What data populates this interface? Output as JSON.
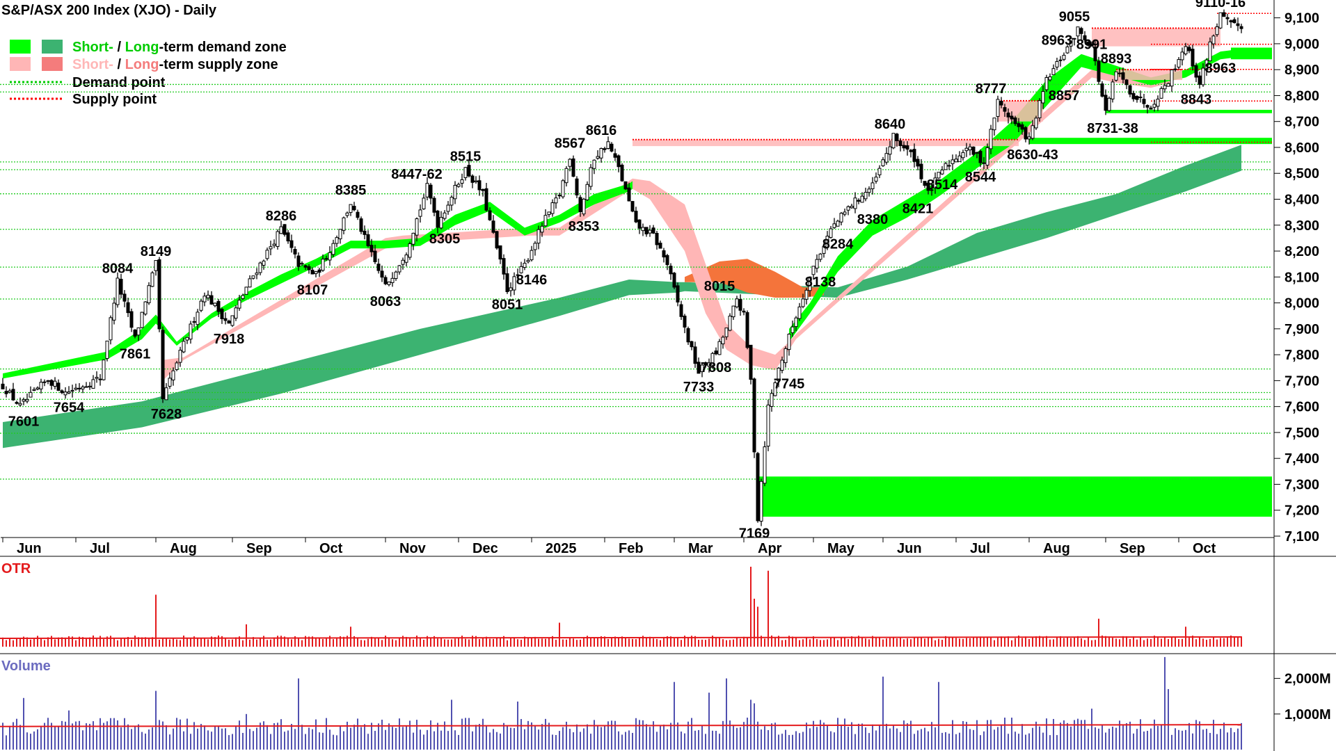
{
  "chart_data": {
    "type": "candlestick",
    "title": "S&P/ASX 200 Index (XJO) - Daily",
    "ylim": [
      7100,
      9150
    ],
    "y_ticks": [
      "9,100",
      "9,000",
      "8,900",
      "8,800",
      "8,700",
      "8,600",
      "8,500",
      "8,400",
      "8,300",
      "8,200",
      "8,100",
      "8,000",
      "7,900",
      "7,800",
      "7,700",
      "7,600",
      "7,500",
      "7,400",
      "7,300",
      "7,200",
      "7,100"
    ],
    "y_tick_values": [
      9100,
      9000,
      8900,
      8800,
      8700,
      8600,
      8500,
      8400,
      8300,
      8200,
      8100,
      8000,
      7900,
      7800,
      7700,
      7600,
      7500,
      7400,
      7300,
      7200,
      7100
    ],
    "x_month_labels": [
      "Jun",
      "Jul",
      "Aug",
      "Sep",
      "Oct",
      "Nov",
      "Dec",
      "2025",
      "Feb",
      "Mar",
      "Apr",
      "May",
      "Jun",
      "Jul",
      "Aug",
      "Sep",
      "Oct"
    ],
    "x_month_start_index": [
      0,
      21,
      44,
      66,
      87,
      110,
      131,
      152,
      173,
      193,
      213,
      233,
      253,
      274,
      295,
      317,
      338
    ],
    "legend": [
      {
        "label_short": "Short-",
        "label_sep": " / ",
        "label_long": "Long",
        "label_rest": "-term demand zone",
        "short_color": "#00ff00",
        "long_color": "#3cb371",
        "short_text_color": "#00cc00",
        "long_text_color": "#00cc00"
      },
      {
        "label_short": "Short-",
        "label_sep": " / ",
        "label_long": "Long",
        "label_rest": "-term supply zone",
        "short_color": "#ffb6b6",
        "long_color": "#f47c7c",
        "short_text_color": "#ffb6b6",
        "long_text_color": "#f47c7c"
      },
      {
        "label": "Demand point",
        "color": "#00cc00",
        "style": "dotted"
      },
      {
        "label": "Supply point",
        "color": "#ff0000",
        "style": "dotted"
      }
    ],
    "price_anchors": [
      [
        0,
        7680
      ],
      [
        5,
        7601
      ],
      [
        13,
        7705
      ],
      [
        18,
        7654
      ],
      [
        28,
        7710
      ],
      [
        33,
        8084
      ],
      [
        38,
        7861
      ],
      [
        42,
        8060
      ],
      [
        44,
        8149
      ],
      [
        46,
        7628
      ],
      [
        52,
        7840
      ],
      [
        58,
        8040
      ],
      [
        65,
        7918
      ],
      [
        70,
        8060
      ],
      [
        80,
        8286
      ],
      [
        85,
        8150
      ],
      [
        90,
        8107
      ],
      [
        95,
        8230
      ],
      [
        100,
        8385
      ],
      [
        105,
        8215
      ],
      [
        110,
        8063
      ],
      [
        116,
        8200
      ],
      [
        122,
        8447
      ],
      [
        125,
        8305
      ],
      [
        130,
        8440
      ],
      [
        133,
        8515
      ],
      [
        138,
        8420
      ],
      [
        145,
        8051
      ],
      [
        150,
        8146
      ],
      [
        155,
        8300
      ],
      [
        160,
        8420
      ],
      [
        163,
        8567
      ],
      [
        166,
        8353
      ],
      [
        170,
        8560
      ],
      [
        174,
        8616
      ],
      [
        177,
        8520
      ],
      [
        182,
        8300
      ],
      [
        187,
        8260
      ],
      [
        191,
        8150
      ],
      [
        196,
        7900
      ],
      [
        200,
        7733
      ],
      [
        205,
        7808
      ],
      [
        208,
        7900
      ],
      [
        211,
        8015
      ],
      [
        213,
        7950
      ],
      [
        215,
        7700
      ],
      [
        217,
        7169
      ],
      [
        220,
        7600
      ],
      [
        223,
        7745
      ],
      [
        228,
        7950
      ],
      [
        233,
        8138
      ],
      [
        238,
        8284
      ],
      [
        244,
        8380
      ],
      [
        250,
        8450
      ],
      [
        256,
        8640
      ],
      [
        262,
        8560
      ],
      [
        266,
        8421
      ],
      [
        270,
        8514
      ],
      [
        277,
        8600
      ],
      [
        282,
        8544
      ],
      [
        286,
        8777
      ],
      [
        291,
        8690
      ],
      [
        295,
        8630
      ],
      [
        300,
        8857
      ],
      [
        305,
        8963
      ],
      [
        309,
        9055
      ],
      [
        313,
        8991
      ],
      [
        317,
        8731
      ],
      [
        320,
        8893
      ],
      [
        325,
        8800
      ],
      [
        330,
        8760
      ],
      [
        335,
        8860
      ],
      [
        340,
        9000
      ],
      [
        344,
        8843
      ],
      [
        347,
        9000
      ],
      [
        350,
        9110
      ],
      [
        353,
        9070
      ]
    ],
    "short_demand_band": [
      [
        0,
        7728,
        7708
      ],
      [
        30,
        7812,
        7782
      ],
      [
        40,
        7900,
        7860
      ],
      [
        44,
        7955,
        7920
      ],
      [
        50,
        7850,
        7835
      ],
      [
        60,
        7960,
        7940
      ],
      [
        70,
        8040,
        8010
      ],
      [
        80,
        8110,
        8075
      ],
      [
        90,
        8170,
        8140
      ],
      [
        100,
        8240,
        8210
      ],
      [
        110,
        8240,
        8210
      ],
      [
        120,
        8250,
        8220
      ],
      [
        130,
        8340,
        8300
      ],
      [
        140,
        8390,
        8355
      ],
      [
        150,
        8290,
        8260
      ],
      [
        160,
        8340,
        8310
      ],
      [
        170,
        8420,
        8380
      ],
      [
        180,
        8460,
        8430
      ],
      [
        181,
        8470,
        8440
      ],
      [
        226,
        7900,
        7850
      ],
      [
        232,
        8000,
        7960
      ],
      [
        240,
        8180,
        8120
      ],
      [
        250,
        8320,
        8260
      ],
      [
        260,
        8400,
        8330
      ],
      [
        270,
        8480,
        8420
      ],
      [
        280,
        8580,
        8520
      ],
      [
        290,
        8700,
        8610
      ],
      [
        300,
        8860,
        8760
      ],
      [
        310,
        8960,
        8910
      ],
      [
        330,
        8870,
        8840
      ],
      [
        340,
        8900,
        8870
      ],
      [
        350,
        8970,
        8940
      ],
      [
        356,
        8980,
        8950
      ]
    ],
    "long_demand_band": [
      [
        0,
        7540,
        7440
      ],
      [
        40,
        7620,
        7520
      ],
      [
        80,
        7760,
        7650
      ],
      [
        120,
        7900,
        7800
      ],
      [
        160,
        8020,
        7950
      ],
      [
        180,
        8090,
        8030
      ],
      [
        194,
        8080,
        8040
      ],
      [
        196,
        8080,
        8045
      ],
      [
        240,
        8060,
        8020
      ],
      [
        260,
        8140,
        8090
      ],
      [
        280,
        8270,
        8170
      ],
      [
        300,
        8350,
        8250
      ],
      [
        320,
        8420,
        8340
      ],
      [
        340,
        8530,
        8430
      ],
      [
        356,
        8610,
        8510
      ]
    ],
    "short_supply_band": [
      [
        46,
        7780,
        7700
      ],
      [
        52,
        7790,
        7780
      ],
      [
        110,
        8250,
        8210
      ],
      [
        115,
        8260,
        8230
      ],
      [
        152,
        8290,
        8260
      ],
      [
        160,
        8290,
        8260
      ],
      [
        181,
        8480,
        8440
      ],
      [
        186,
        8470,
        8400
      ],
      [
        196,
        8380,
        8200
      ],
      [
        202,
        8150,
        7960
      ],
      [
        208,
        7920,
        7820
      ],
      [
        215,
        7830,
        7760
      ],
      [
        222,
        7800,
        7740
      ],
      [
        226,
        7850,
        7820
      ],
      [
        228,
        7880,
        7860
      ],
      [
        313,
        8900,
        8870
      ],
      [
        320,
        8880,
        8850
      ],
      [
        330,
        8860,
        8830
      ],
      [
        336,
        8880,
        8850
      ]
    ],
    "long_supply_band": [
      [
        196,
        8100,
        8080
      ],
      [
        206,
        8160,
        8080
      ],
      [
        214,
        8170,
        8040
      ],
      [
        222,
        8120,
        8020
      ],
      [
        230,
        8060,
        8020
      ],
      [
        236,
        8060,
        8030
      ]
    ],
    "supply_zones": [
      {
        "x0": 181,
        "x1": 292,
        "ytop": 8630,
        "ybot": 8605,
        "color": "#ffb6b6"
      },
      {
        "x0": 286,
        "x1": 299,
        "ytop": 8780,
        "ybot": 8700,
        "color": "#ffb6b6"
      },
      {
        "x0": 313,
        "x1": 350,
        "ytop": 9060,
        "ybot": 8990,
        "color": "#ffb6b6"
      },
      {
        "x0": 320,
        "x1": 339,
        "ytop": 8900,
        "ybot": 8860,
        "color": "#ffb6b6"
      }
    ],
    "demand_zones": [
      {
        "x0": 217,
        "x1": 367,
        "ytop": 7330,
        "ybot": 7175,
        "color": "#00ff00"
      },
      {
        "x0": 295,
        "x1": 367,
        "ytop": 8637,
        "ybot": 8613,
        "color": "#00ff00"
      },
      {
        "x0": 317,
        "x1": 367,
        "ytop": 8745,
        "ybot": 8732,
        "color": "#00ff00"
      },
      {
        "x0": 353,
        "x1": 367,
        "ytop": 8985,
        "ybot": 8940,
        "color": "#00ff00"
      }
    ],
    "demand_points": [
      7320,
      7497,
      7600,
      7628,
      7654,
      7745,
      8015,
      8138,
      8284,
      8421,
      8514,
      8544,
      8814,
      8843
    ],
    "supply_points": [
      9117,
      8998,
      8901,
      8779,
      8620
    ],
    "annotations": [
      {
        "text": "7601",
        "i": 6,
        "y": 7601,
        "pos": "below"
      },
      {
        "text": "7654",
        "i": 19,
        "y": 7654,
        "pos": "below"
      },
      {
        "text": "8084",
        "i": 33,
        "y": 8084,
        "pos": "above"
      },
      {
        "text": "7861",
        "i": 38,
        "y": 7861,
        "pos": "below"
      },
      {
        "text": "8149",
        "i": 44,
        "y": 8149,
        "pos": "above"
      },
      {
        "text": "7628",
        "i": 47,
        "y": 7628,
        "pos": "below"
      },
      {
        "text": "7918",
        "i": 65,
        "y": 7918,
        "pos": "below"
      },
      {
        "text": "8286",
        "i": 80,
        "y": 8286,
        "pos": "above"
      },
      {
        "text": "8107",
        "i": 89,
        "y": 8107,
        "pos": "below"
      },
      {
        "text": "8385",
        "i": 100,
        "y": 8385,
        "pos": "above"
      },
      {
        "text": "8063",
        "i": 110,
        "y": 8063,
        "pos": "below"
      },
      {
        "text": "8447-62",
        "i": 119,
        "y": 8447,
        "pos": "above"
      },
      {
        "text": "8305",
        "i": 127,
        "y": 8305,
        "pos": "below"
      },
      {
        "text": "8515",
        "i": 133,
        "y": 8515,
        "pos": "above"
      },
      {
        "text": "8051",
        "i": 145,
        "y": 8051,
        "pos": "below"
      },
      {
        "text": "8146",
        "i": 152,
        "y": 8146,
        "pos": "below"
      },
      {
        "text": "8567",
        "i": 163,
        "y": 8567,
        "pos": "above"
      },
      {
        "text": "8353",
        "i": 167,
        "y": 8353,
        "pos": "below"
      },
      {
        "text": "8616",
        "i": 172,
        "y": 8616,
        "pos": "above"
      },
      {
        "text": "7733",
        "i": 200,
        "y": 7733,
        "pos": "below"
      },
      {
        "text": "7808",
        "i": 205,
        "y": 7808,
        "pos": "below"
      },
      {
        "text": "8015",
        "i": 206,
        "y": 8015,
        "pos": "above"
      },
      {
        "text": "7169",
        "i": 216,
        "y": 7169,
        "pos": "below"
      },
      {
        "text": "7745",
        "i": 226,
        "y": 7745,
        "pos": "below"
      },
      {
        "text": "8138",
        "i": 235,
        "y": 8138,
        "pos": "below"
      },
      {
        "text": "8284",
        "i": 240,
        "y": 8284,
        "pos": "below"
      },
      {
        "text": "8380",
        "i": 250,
        "y": 8380,
        "pos": "below"
      },
      {
        "text": "8640",
        "i": 255,
        "y": 8640,
        "pos": "above"
      },
      {
        "text": "8421",
        "i": 263,
        "y": 8421,
        "pos": "below"
      },
      {
        "text": "8514",
        "i": 270,
        "y": 8514,
        "pos": "below"
      },
      {
        "text": "8544",
        "i": 281,
        "y": 8544,
        "pos": "below"
      },
      {
        "text": "8777",
        "i": 284,
        "y": 8777,
        "pos": "above"
      },
      {
        "text": "8630-43",
        "i": 296,
        "y": 8630,
        "pos": "below"
      },
      {
        "text": "8857",
        "i": 305,
        "y": 8857,
        "pos": "below"
      },
      {
        "text": "8963",
        "i": 303,
        "y": 8963,
        "pos": "above"
      },
      {
        "text": "9055",
        "i": 308,
        "y": 9055,
        "pos": "above"
      },
      {
        "text": "8991",
        "i": 313,
        "y": 8991,
        "pos": "inzone"
      },
      {
        "text": "8893",
        "i": 320,
        "y": 8893,
        "pos": "above"
      },
      {
        "text": "8731-38",
        "i": 319,
        "y": 8731,
        "pos": "below"
      },
      {
        "text": "8843",
        "i": 343,
        "y": 8843,
        "pos": "below"
      },
      {
        "text": "8963",
        "i": 350,
        "y": 8963,
        "pos": "below"
      },
      {
        "text": "9110-16",
        "i": 350,
        "y": 9110,
        "pos": "above"
      }
    ],
    "otr": {
      "label": "OTR",
      "color": "#e41a1c",
      "spikes": [
        [
          44,
          0.65
        ],
        [
          215,
          1.0
        ],
        [
          216,
          0.6
        ],
        [
          220,
          0.95
        ],
        [
          217,
          0.5
        ],
        [
          315,
          0.35
        ],
        [
          160,
          0.3
        ],
        [
          70,
          0.28
        ],
        [
          100,
          0.25
        ],
        [
          340,
          0.25
        ]
      ]
    },
    "volume": {
      "label": "Volume",
      "y_ticks": [
        "2,000M",
        "1,000M"
      ],
      "y_tick_values": [
        2000,
        1000
      ],
      "ylim": [
        0,
        2500
      ],
      "color": "#5050b0",
      "avg_color": "#e41a1c",
      "spikes": [
        [
          6,
          1450
        ],
        [
          19,
          1100
        ],
        [
          44,
          1650
        ],
        [
          70,
          1000
        ],
        [
          85,
          2000
        ],
        [
          129,
          1400
        ],
        [
          148,
          1350
        ],
        [
          193,
          1900
        ],
        [
          203,
          1600
        ],
        [
          208,
          2000
        ],
        [
          215,
          1400
        ],
        [
          216,
          1300
        ],
        [
          253,
          2050
        ],
        [
          269,
          1900
        ],
        [
          313,
          1150
        ],
        [
          334,
          2600
        ],
        [
          335,
          1700
        ]
      ]
    }
  }
}
